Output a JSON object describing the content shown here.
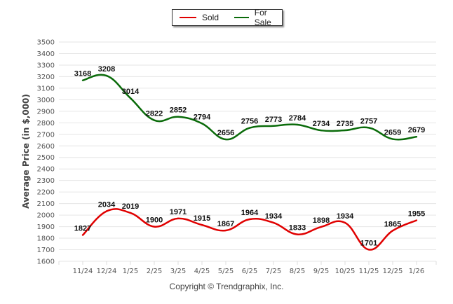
{
  "chart_data": {
    "type": "line",
    "title": "",
    "xlabel": "",
    "ylabel": "Average Price (in $,000)",
    "categories": [
      "11/24",
      "12/24",
      "1/25",
      "2/25",
      "3/25",
      "4/25",
      "5/25",
      "6/25",
      "7/25",
      "8/25",
      "9/25",
      "10/25",
      "11/25",
      "12/25",
      "1/26"
    ],
    "series": [
      {
        "name": "Sold",
        "color": "#e00000",
        "values": [
          1827,
          2034,
          2019,
          1900,
          1971,
          1915,
          1867,
          1964,
          1934,
          1833,
          1898,
          1934,
          1701,
          1865,
          1955
        ]
      },
      {
        "name": "For Sale",
        "color": "#0a6b0a",
        "values": [
          3168,
          3208,
          3014,
          2822,
          2852,
          2794,
          2656,
          2756,
          2773,
          2784,
          2734,
          2735,
          2757,
          2659,
          2679
        ]
      }
    ],
    "ylim": [
      1600,
      3500
    ],
    "yticks": [
      1600,
      1700,
      1800,
      1900,
      2000,
      2100,
      2200,
      2300,
      2400,
      2500,
      2600,
      2700,
      2800,
      2900,
      3000,
      3100,
      3200,
      3300,
      3400,
      3500
    ],
    "grid": true,
    "legend_position": "top-center",
    "smooth": true
  },
  "legend": {
    "items": [
      {
        "label": "Sold",
        "color": "#e00000"
      },
      {
        "label": "For Sale",
        "color": "#0a6b0a"
      }
    ]
  },
  "footer": {
    "copyright": "Copyright © Trendgraphix, Inc."
  }
}
